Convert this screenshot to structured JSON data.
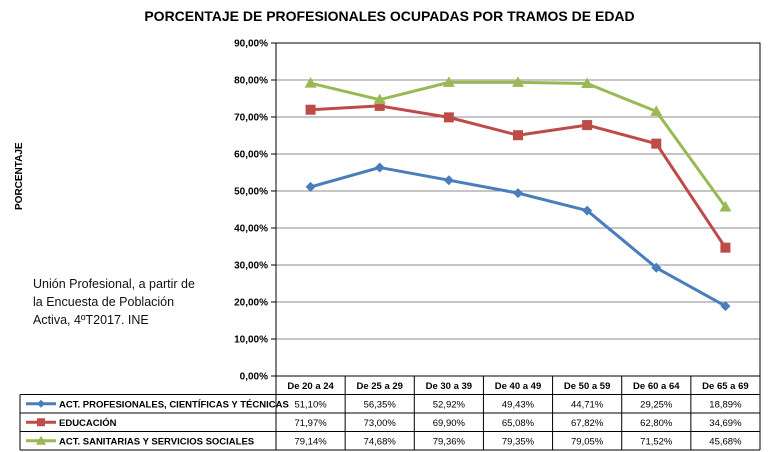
{
  "chart_data": {
    "type": "line",
    "title": "PORCENTAJE DE PROFESIONALES OCUPADAS POR TRAMOS DE EDAD",
    "ylabel": "PORCENTAJE",
    "xlabel": "",
    "ylim": [
      0,
      90
    ],
    "y_ticks": [
      "0,00%",
      "10,00%",
      "20,00%",
      "30,00%",
      "40,00%",
      "50,00%",
      "60,00%",
      "70,00%",
      "80,00%",
      "90,00%"
    ],
    "categories": [
      "De 20 a 24",
      "De 25 a 29",
      "De 30 a 39",
      "De 40 a 49",
      "De 50 a 59",
      "De 60 a 64",
      "De 65 a 69"
    ],
    "series": [
      {
        "name": "ACT. PROFESIONALES, CIENTÍFICAS Y TÉCNICAS",
        "color": "#4a7ebb",
        "marker": "diamond",
        "values": [
          51.1,
          56.35,
          52.92,
          49.43,
          44.71,
          29.25,
          18.89
        ],
        "labels": [
          "51,10%",
          "56,35%",
          "52,92%",
          "49,43%",
          "44,71%",
          "29,25%",
          "18,89%"
        ]
      },
      {
        "name": "EDUCACIÓN",
        "color": "#be4b48",
        "marker": "square",
        "values": [
          71.97,
          73.0,
          69.9,
          65.08,
          67.82,
          62.8,
          34.69
        ],
        "labels": [
          "71,97%",
          "73,00%",
          "69,90%",
          "65,08%",
          "67,82%",
          "62,80%",
          "34,69%"
        ]
      },
      {
        "name": "ACT. SANITARIAS Y SERVICIOS SOCIALES",
        "color": "#98b954",
        "marker": "triangle",
        "values": [
          79.14,
          74.68,
          79.36,
          79.35,
          79.05,
          71.52,
          45.68
        ],
        "labels": [
          "79,14%",
          "74,68%",
          "79,36%",
          "79,35%",
          "79,05%",
          "71,52%",
          "45,68%"
        ]
      }
    ]
  },
  "source_note": "Unión Profesional, a partir de la Encuesta de Población Activa, 4ºT2017. INE"
}
